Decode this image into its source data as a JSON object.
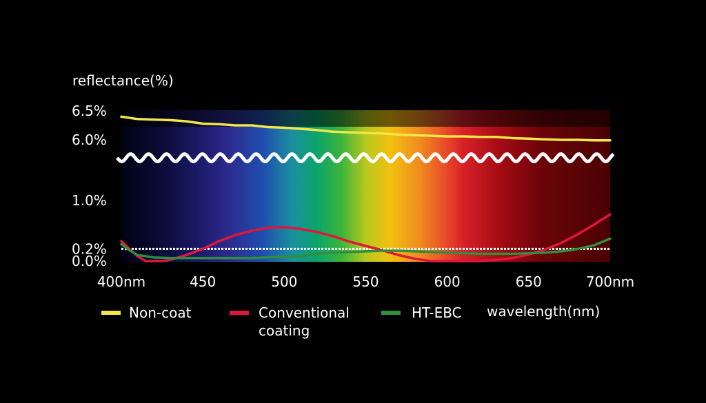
{
  "chart_data": {
    "type": "line",
    "ylabel": "reflectance(%)",
    "xlabel": "wavelength(nm)",
    "xlim": [
      400,
      700
    ],
    "x_ticks": [
      {
        "value": 400,
        "label": "400nm"
      },
      {
        "value": 450,
        "label": "450"
      },
      {
        "value": 500,
        "label": "500"
      },
      {
        "value": 550,
        "label": "550"
      },
      {
        "value": 600,
        "label": "600"
      },
      {
        "value": 650,
        "label": "650"
      },
      {
        "value": 700,
        "label": "700nm"
      }
    ],
    "y_ticks": [
      {
        "value": 6.5,
        "label": "6.5%"
      },
      {
        "value": 6.0,
        "label": "6.0%"
      },
      {
        "value": 1.0,
        "label": "1.0%"
      },
      {
        "value": 0.2,
        "label": "0.2%"
      },
      {
        "value": 0.0,
        "label": "0.0%"
      }
    ],
    "y_axis_break": true,
    "reference_line_y": 0.2,
    "legend_position": "bottom",
    "series": [
      {
        "name": "Non-coat",
        "color": "#f2e64a",
        "x": [
          400,
          410,
          420,
          430,
          440,
          450,
          460,
          470,
          480,
          490,
          500,
          510,
          520,
          530,
          540,
          550,
          560,
          570,
          580,
          590,
          600,
          610,
          620,
          630,
          640,
          650,
          660,
          670,
          680,
          690,
          700
        ],
        "y": [
          6.4,
          6.36,
          6.35,
          6.34,
          6.32,
          6.28,
          6.27,
          6.25,
          6.25,
          6.22,
          6.21,
          6.19,
          6.17,
          6.14,
          6.13,
          6.12,
          6.11,
          6.09,
          6.08,
          6.07,
          6.06,
          6.06,
          6.05,
          6.05,
          6.03,
          6.02,
          6.01,
          6.0,
          6.0,
          5.99,
          5.99
        ]
      },
      {
        "name": "Conventional coating",
        "color": "#e0163c",
        "x": [
          400,
          405,
          410,
          415,
          420,
          425,
          430,
          440,
          450,
          460,
          470,
          480,
          490,
          500,
          510,
          520,
          530,
          540,
          550,
          560,
          570,
          580,
          590,
          600,
          610,
          620,
          630,
          640,
          650,
          660,
          670,
          680,
          690,
          700
        ],
        "y": [
          0.33,
          0.2,
          0.08,
          0.0,
          0.0,
          0.0,
          0.02,
          0.1,
          0.2,
          0.33,
          0.43,
          0.5,
          0.55,
          0.56,
          0.53,
          0.48,
          0.41,
          0.32,
          0.25,
          0.18,
          0.1,
          0.04,
          0.0,
          0.0,
          0.0,
          0.0,
          0.02,
          0.05,
          0.11,
          0.19,
          0.3,
          0.44,
          0.6,
          0.77
        ]
      },
      {
        "name": "HT-EBC",
        "color": "#2f8f3c",
        "x": [
          400,
          405,
          410,
          420,
          430,
          440,
          450,
          460,
          470,
          480,
          490,
          500,
          510,
          520,
          530,
          540,
          550,
          560,
          570,
          580,
          590,
          600,
          610,
          620,
          630,
          640,
          650,
          660,
          670,
          680,
          690,
          700
        ],
        "y": [
          0.28,
          0.18,
          0.1,
          0.06,
          0.05,
          0.05,
          0.05,
          0.05,
          0.05,
          0.05,
          0.06,
          0.07,
          0.08,
          0.12,
          0.14,
          0.15,
          0.16,
          0.17,
          0.17,
          0.16,
          0.15,
          0.14,
          0.13,
          0.12,
          0.12,
          0.12,
          0.13,
          0.14,
          0.16,
          0.2,
          0.26,
          0.37
        ]
      }
    ]
  }
}
